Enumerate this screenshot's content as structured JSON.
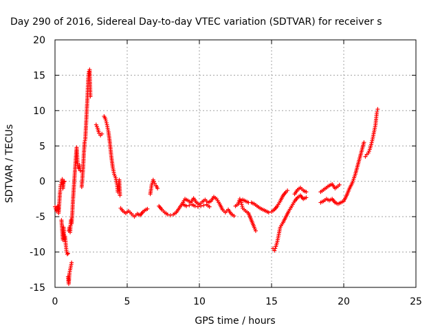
{
  "chart_data": {
    "type": "scatter",
    "title": "Day 290 of 2016, Sidereal Day-to-day VTEC variation (SDTVAR) for receiver s",
    "xlabel": "GPS time / hours",
    "ylabel": "SDTVAR / TECUs",
    "xlim": [
      0,
      25
    ],
    "ylim": [
      -15,
      20
    ],
    "xticks": [
      "0",
      "5",
      "10",
      "15",
      "20",
      "25"
    ],
    "yticks": [
      "-15",
      "-10",
      "-5",
      "0",
      "5",
      "10",
      "15",
      "20"
    ],
    "grid": true,
    "marker": "plus",
    "color": "#ff0000",
    "segments": [
      [
        [
          0.0,
          -3.6
        ],
        [
          0.1,
          -4.2
        ],
        [
          0.2,
          -3.5
        ],
        [
          0.25,
          -4.5
        ],
        [
          0.3,
          -3.0
        ],
        [
          0.35,
          -1.5
        ],
        [
          0.4,
          -0.5
        ],
        [
          0.45,
          -0.2
        ],
        [
          0.5,
          0.3
        ],
        [
          0.55,
          -1.0
        ],
        [
          0.6,
          -0.1
        ],
        [
          0.65,
          0.0
        ]
      ],
      [
        [
          0.45,
          -5.5
        ],
        [
          0.5,
          -7.0
        ],
        [
          0.55,
          -8.3
        ],
        [
          0.6,
          -6.5
        ],
        [
          0.65,
          -8.2
        ],
        [
          0.7,
          -7.8
        ],
        [
          0.75,
          -9.0
        ],
        [
          0.8,
          -10.0
        ],
        [
          0.85,
          -10.3
        ],
        [
          0.9,
          -10.2
        ]
      ],
      [
        [
          0.9,
          -13.5
        ],
        [
          0.95,
          -14.5
        ],
        [
          1.0,
          -13.0
        ],
        [
          1.05,
          -12.5
        ],
        [
          1.1,
          -12.0
        ],
        [
          1.15,
          -11.5
        ]
      ],
      [
        [
          0.95,
          -7.0
        ],
        [
          1.0,
          -6.5
        ],
        [
          1.05,
          -7.2
        ],
        [
          1.1,
          -5.5
        ],
        [
          1.15,
          -6.0
        ],
        [
          1.2,
          -4.5
        ],
        [
          1.25,
          -2.5
        ],
        [
          1.3,
          -1.0
        ],
        [
          1.35,
          0.5
        ],
        [
          1.4,
          2.0
        ],
        [
          1.45,
          3.5
        ],
        [
          1.5,
          4.8
        ],
        [
          1.55,
          3.0
        ],
        [
          1.6,
          2.0
        ],
        [
          1.65,
          1.8
        ],
        [
          1.7,
          2.3
        ],
        [
          1.75,
          1.5
        ]
      ],
      [
        [
          1.85,
          -0.8
        ],
        [
          1.9,
          0.5
        ],
        [
          1.95,
          2.0
        ],
        [
          2.0,
          4.0
        ],
        [
          2.05,
          5.5
        ],
        [
          2.1,
          6.0
        ],
        [
          2.15,
          8.0
        ],
        [
          2.2,
          10.0
        ],
        [
          2.25,
          12.0
        ],
        [
          2.3,
          14.5
        ],
        [
          2.35,
          15.5
        ],
        [
          2.4,
          15.8
        ],
        [
          2.45,
          12.0
        ]
      ],
      [
        [
          2.85,
          8.0
        ],
        [
          2.95,
          7.5
        ],
        [
          3.05,
          6.8
        ],
        [
          3.15,
          6.5
        ],
        [
          3.25,
          6.7
        ]
      ],
      [
        [
          3.4,
          9.2
        ],
        [
          3.5,
          8.8
        ],
        [
          3.6,
          8.0
        ],
        [
          3.7,
          7.0
        ],
        [
          3.8,
          5.5
        ],
        [
          3.9,
          3.5
        ],
        [
          4.0,
          2.0
        ],
        [
          4.1,
          1.0
        ],
        [
          4.2,
          0.5
        ],
        [
          4.3,
          -0.5
        ],
        [
          4.35,
          -1.5
        ],
        [
          4.4,
          -0.5
        ],
        [
          4.45,
          0.2
        ],
        [
          4.5,
          -2.0
        ]
      ],
      [
        [
          4.55,
          -3.8
        ],
        [
          4.7,
          -4.2
        ],
        [
          4.9,
          -4.5
        ],
        [
          5.1,
          -4.2
        ],
        [
          5.3,
          -4.6
        ],
        [
          5.5,
          -5.0
        ],
        [
          5.7,
          -4.6
        ],
        [
          5.9,
          -4.8
        ],
        [
          6.1,
          -4.3
        ],
        [
          6.3,
          -4.0
        ],
        [
          6.4,
          -3.9
        ]
      ],
      [
        [
          6.6,
          -1.8
        ],
        [
          6.7,
          -0.5
        ],
        [
          6.8,
          0.2
        ],
        [
          6.9,
          -0.3
        ],
        [
          7.0,
          -0.6
        ],
        [
          7.1,
          -1.0
        ]
      ],
      [
        [
          7.2,
          -3.5
        ],
        [
          7.4,
          -4.0
        ],
        [
          7.6,
          -4.4
        ],
        [
          7.8,
          -4.7
        ],
        [
          8.0,
          -4.8
        ],
        [
          8.2,
          -4.7
        ],
        [
          8.4,
          -4.4
        ],
        [
          8.6,
          -3.8
        ],
        [
          8.8,
          -3.2
        ],
        [
          9.0,
          -2.5
        ],
        [
          9.2,
          -2.7
        ],
        [
          9.4,
          -3.0
        ],
        [
          9.6,
          -2.4
        ],
        [
          9.8,
          -3.0
        ],
        [
          10.0,
          -3.3
        ],
        [
          10.2,
          -2.9
        ],
        [
          10.4,
          -2.6
        ],
        [
          10.6,
          -3.0
        ],
        [
          10.8,
          -2.8
        ],
        [
          11.0,
          -2.2
        ],
        [
          11.2,
          -2.5
        ],
        [
          11.4,
          -3.2
        ],
        [
          11.6,
          -4.0
        ],
        [
          11.8,
          -4.4
        ],
        [
          12.0,
          -4.0
        ],
        [
          12.2,
          -4.6
        ],
        [
          12.4,
          -4.9
        ]
      ],
      [
        [
          8.9,
          -3.3
        ],
        [
          9.1,
          -3.5
        ],
        [
          9.3,
          -3.4
        ],
        [
          9.5,
          -3.3
        ],
        [
          9.7,
          -3.5
        ],
        [
          9.9,
          -3.6
        ],
        [
          10.1,
          -3.5
        ],
        [
          10.3,
          -3.4
        ],
        [
          10.5,
          -3.3
        ],
        [
          10.7,
          -3.6
        ]
      ],
      [
        [
          12.5,
          -3.5
        ],
        [
          12.7,
          -3.2
        ],
        [
          12.8,
          -2.5
        ],
        [
          12.9,
          -3.0
        ],
        [
          13.0,
          -3.8
        ],
        [
          13.1,
          -4.0
        ],
        [
          13.2,
          -4.2
        ],
        [
          13.4,
          -4.5
        ],
        [
          13.6,
          -5.5
        ],
        [
          13.8,
          -6.5
        ],
        [
          13.9,
          -7.0
        ]
      ],
      [
        [
          12.8,
          -2.8
        ],
        [
          13.0,
          -2.6
        ],
        [
          13.2,
          -2.8
        ],
        [
          13.4,
          -3.0
        ],
        [
          13.6,
          -3.0
        ],
        [
          13.8,
          -3.2
        ],
        [
          14.0,
          -3.5
        ],
        [
          14.2,
          -3.8
        ],
        [
          14.4,
          -4.0
        ],
        [
          14.6,
          -4.2
        ],
        [
          14.8,
          -4.4
        ],
        [
          15.0,
          -4.3
        ],
        [
          15.2,
          -4.0
        ],
        [
          15.4,
          -3.5
        ],
        [
          15.6,
          -2.8
        ],
        [
          15.8,
          -2.0
        ],
        [
          16.0,
          -1.5
        ],
        [
          16.1,
          -1.3
        ]
      ],
      [
        [
          15.1,
          -9.5
        ],
        [
          15.2,
          -9.8
        ],
        [
          15.3,
          -9.2
        ],
        [
          15.4,
          -8.5
        ],
        [
          15.5,
          -7.5
        ],
        [
          15.6,
          -6.5
        ],
        [
          15.8,
          -5.8
        ],
        [
          16.0,
          -5.0
        ],
        [
          16.2,
          -4.2
        ],
        [
          16.4,
          -3.5
        ],
        [
          16.6,
          -2.8
        ],
        [
          16.8,
          -2.3
        ],
        [
          17.0,
          -2.0
        ],
        [
          17.2,
          -2.5
        ],
        [
          17.4,
          -2.3
        ]
      ],
      [
        [
          16.6,
          -1.8
        ],
        [
          16.8,
          -1.2
        ],
        [
          17.0,
          -0.9
        ],
        [
          17.2,
          -1.3
        ],
        [
          17.4,
          -1.5
        ]
      ],
      [
        [
          18.4,
          -1.5
        ],
        [
          18.6,
          -1.2
        ],
        [
          18.8,
          -0.9
        ],
        [
          19.0,
          -0.6
        ],
        [
          19.2,
          -0.4
        ],
        [
          19.4,
          -1.0
        ],
        [
          19.6,
          -0.7
        ],
        [
          19.7,
          -0.5
        ]
      ],
      [
        [
          18.4,
          -3.0
        ],
        [
          18.6,
          -2.8
        ],
        [
          18.8,
          -2.5
        ],
        [
          19.0,
          -2.7
        ],
        [
          19.2,
          -2.5
        ],
        [
          19.4,
          -3.0
        ],
        [
          19.6,
          -3.2
        ],
        [
          19.8,
          -3.0
        ],
        [
          20.0,
          -2.8
        ],
        [
          20.2,
          -2.0
        ],
        [
          20.4,
          -1.0
        ],
        [
          20.6,
          -0.2
        ],
        [
          20.8,
          1.0
        ],
        [
          21.0,
          2.5
        ],
        [
          21.2,
          4.0
        ],
        [
          21.4,
          5.5
        ]
      ],
      [
        [
          21.5,
          3.5
        ],
        [
          21.6,
          3.8
        ],
        [
          21.7,
          4.0
        ],
        [
          21.8,
          4.5
        ],
        [
          21.9,
          5.2
        ],
        [
          22.0,
          6.0
        ],
        [
          22.1,
          7.0
        ],
        [
          22.2,
          8.0
        ],
        [
          22.25,
          9.0
        ],
        [
          22.3,
          9.8
        ],
        [
          22.35,
          10.2
        ]
      ]
    ]
  }
}
